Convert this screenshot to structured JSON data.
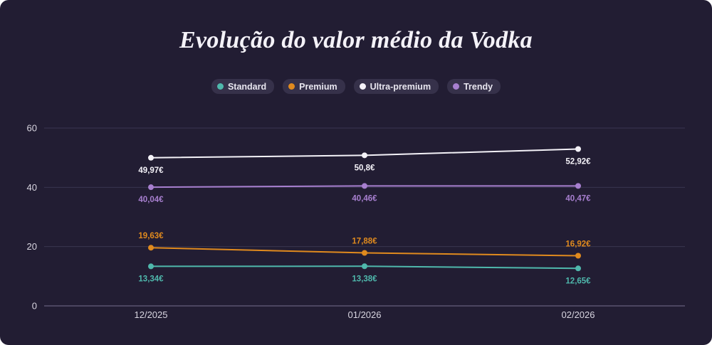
{
  "title": "Evolução do valor médio da Vodka",
  "colors": {
    "background": "#221d33",
    "grid": "#3a3550",
    "axis": "#5a5570",
    "Standard": "#4fb8ac",
    "Premium": "#e08a1e",
    "Ultra-premium": "#f4f2f8",
    "Trendy": "#a77fcf"
  },
  "legend": [
    {
      "label": "Standard",
      "color": "#4fb8ac"
    },
    {
      "label": "Premium",
      "color": "#e08a1e"
    },
    {
      "label": "Ultra-premium",
      "color": "#f4f2f8"
    },
    {
      "label": "Trendy",
      "color": "#a77fcf"
    }
  ],
  "chart_data": {
    "type": "line",
    "title": "Evolução do valor médio da Vodka",
    "xlabel": "",
    "ylabel": "",
    "categories": [
      "12/2025",
      "01/2026",
      "02/2026"
    ],
    "ylim": [
      0,
      60
    ],
    "yticks": [
      0,
      20,
      40,
      60
    ],
    "grid": true,
    "legend_position": "top",
    "series": [
      {
        "name": "Standard",
        "color": "#4fb8ac",
        "values": [
          13.34,
          13.38,
          12.65
        ],
        "labels": [
          "13,34€",
          "13,38€",
          "12,65€"
        ],
        "label_pos": "below"
      },
      {
        "name": "Premium",
        "color": "#e08a1e",
        "values": [
          19.63,
          17.88,
          16.92
        ],
        "labels": [
          "19,63€",
          "17,88€",
          "16,92€"
        ],
        "label_pos": "above"
      },
      {
        "name": "Ultra-premium",
        "color": "#f4f2f8",
        "values": [
          49.97,
          50.8,
          52.92
        ],
        "labels": [
          "49,97€",
          "50,8€",
          "52,92€"
        ],
        "label_pos": "below"
      },
      {
        "name": "Trendy",
        "color": "#a77fcf",
        "values": [
          40.04,
          40.46,
          40.47
        ],
        "labels": [
          "40,04€",
          "40,46€",
          "40,47€"
        ],
        "label_pos": "below"
      }
    ]
  }
}
